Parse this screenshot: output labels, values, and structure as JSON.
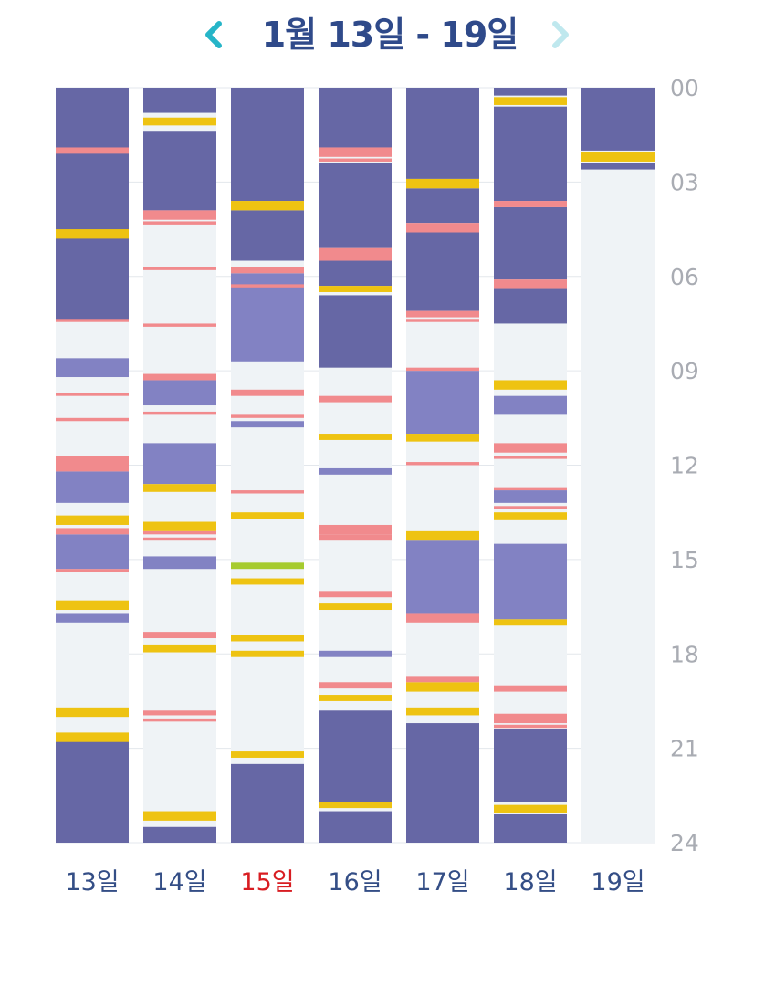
{
  "header": {
    "title": "1월 13일 - 19일",
    "prev_icon": "chevron-left-icon",
    "next_icon": "chevron-right-icon",
    "prev_color": "#26b5c8",
    "next_color": "#bfe8ee"
  },
  "chart_data": {
    "type": "bar",
    "orientation": "stacked-timeline",
    "days": [
      "13일",
      "14일",
      "15일",
      "16일",
      "17일",
      "18일",
      "19일"
    ],
    "highlighted_day": "15일",
    "hour_ticks": [
      "00",
      "03",
      "06",
      "09",
      "12",
      "15",
      "18",
      "21",
      "24"
    ],
    "ylim": [
      0,
      24
    ],
    "colors": {
      "sleep": "#6667a5",
      "nap": "#8282c3",
      "feed": "#eec312",
      "diaper": "#f18a8d",
      "other": "#a6cb2f",
      "background": "#eff3f6",
      "label": "#344e86",
      "highlight_label": "#d81d22",
      "tick": "#a9acb3"
    },
    "series": [
      {
        "day": "13일",
        "sleep": [
          [
            0,
            7.4
          ],
          [
            20.7,
            24
          ]
        ],
        "nap": [
          [
            8.6,
            9.2
          ],
          [
            12.2,
            13.2
          ],
          [
            14.2,
            15.3
          ],
          [
            16.7,
            17.0
          ]
        ],
        "feed": [
          [
            4.5,
            4.8
          ],
          [
            13.6,
            13.9
          ],
          [
            16.3,
            16.6
          ],
          [
            19.7,
            20.0
          ],
          [
            20.5,
            20.8
          ]
        ],
        "diaper": [
          [
            1.9,
            2.1
          ],
          [
            7.35,
            7.45
          ],
          [
            9.7,
            9.8
          ],
          [
            10.5,
            10.6
          ],
          [
            11.7,
            12.2
          ],
          [
            14.0,
            14.2
          ],
          [
            15.3,
            15.4
          ]
        ],
        "other": []
      },
      {
        "day": "14일",
        "sleep": [
          [
            0,
            0.8
          ],
          [
            1.4,
            3.9
          ],
          [
            23.5,
            24
          ]
        ],
        "nap": [
          [
            9.3,
            10.1
          ],
          [
            11.3,
            12.6
          ],
          [
            14.9,
            15.3
          ]
        ],
        "feed": [
          [
            0.95,
            1.2
          ],
          [
            12.6,
            12.85
          ],
          [
            13.8,
            14.1
          ],
          [
            17.7,
            17.95
          ],
          [
            23.0,
            23.3
          ]
        ],
        "diaper": [
          [
            3.9,
            4.2
          ],
          [
            4.25,
            4.35
          ],
          [
            5.7,
            5.8
          ],
          [
            7.5,
            7.6
          ],
          [
            9.1,
            9.3
          ],
          [
            10.3,
            10.4
          ],
          [
            14.1,
            14.2
          ],
          [
            14.3,
            14.4
          ],
          [
            17.3,
            17.5
          ],
          [
            19.8,
            19.95
          ],
          [
            20.05,
            20.15
          ]
        ],
        "other": []
      },
      {
        "day": "15일",
        "sleep": [
          [
            0,
            3.6
          ],
          [
            3.9,
            5.5
          ],
          [
            21.5,
            24
          ]
        ],
        "nap": [
          [
            5.9,
            8.7
          ],
          [
            10.6,
            10.8
          ]
        ],
        "feed": [
          [
            3.6,
            3.9
          ],
          [
            13.5,
            13.7
          ],
          [
            15.6,
            15.8
          ],
          [
            17.4,
            17.6
          ],
          [
            17.9,
            18.1
          ],
          [
            21.1,
            21.3
          ]
        ],
        "diaper": [
          [
            5.7,
            5.9
          ],
          [
            6.25,
            6.35
          ],
          [
            9.6,
            9.8
          ],
          [
            10.4,
            10.5
          ],
          [
            12.8,
            12.9
          ]
        ],
        "other": [
          [
            15.1,
            15.3
          ]
        ]
      },
      {
        "day": "16일",
        "sleep": [
          [
            0,
            1.9
          ],
          [
            2.4,
            5.1
          ],
          [
            5.5,
            6.3
          ],
          [
            6.6,
            8.9
          ],
          [
            19.8,
            22.7
          ],
          [
            23.0,
            24
          ]
        ],
        "nap": [
          [
            12.1,
            12.3
          ],
          [
            17.9,
            18.1
          ]
        ],
        "feed": [
          [
            6.3,
            6.5
          ],
          [
            11.0,
            11.2
          ],
          [
            16.4,
            16.6
          ],
          [
            19.3,
            19.5
          ],
          [
            22.7,
            22.9
          ]
        ],
        "diaper": [
          [
            1.9,
            2.2
          ],
          [
            2.25,
            2.35
          ],
          [
            5.1,
            5.5
          ],
          [
            9.8,
            10.0
          ],
          [
            13.9,
            14.2
          ],
          [
            14.2,
            14.4
          ],
          [
            16.0,
            16.2
          ],
          [
            18.9,
            19.1
          ]
        ],
        "other": []
      },
      {
        "day": "17일",
        "sleep": [
          [
            0,
            2.9
          ],
          [
            3.2,
            4.3
          ],
          [
            4.6,
            7.1
          ],
          [
            20.2,
            24
          ]
        ],
        "nap": [
          [
            9.0,
            11.0
          ],
          [
            14.4,
            16.7
          ]
        ],
        "feed": [
          [
            2.9,
            3.2
          ],
          [
            11.0,
            11.25
          ],
          [
            14.1,
            14.4
          ],
          [
            18.9,
            19.2
          ],
          [
            19.7,
            19.95
          ]
        ],
        "diaper": [
          [
            4.3,
            4.6
          ],
          [
            7.1,
            7.3
          ],
          [
            7.35,
            7.45
          ],
          [
            8.9,
            9.0
          ],
          [
            11.9,
            12.0
          ],
          [
            16.7,
            17.0
          ],
          [
            18.7,
            18.9
          ]
        ],
        "other": []
      },
      {
        "day": "18일",
        "sleep": [
          [
            0,
            0.25
          ],
          [
            0.6,
            3.6
          ],
          [
            3.8,
            6.1
          ],
          [
            6.4,
            7.5
          ],
          [
            20.4,
            22.7
          ],
          [
            23.1,
            24
          ]
        ],
        "nap": [
          [
            9.8,
            10.4
          ],
          [
            12.8,
            13.2
          ],
          [
            14.5,
            16.9
          ]
        ],
        "feed": [
          [
            0.3,
            0.55
          ],
          [
            9.3,
            9.6
          ],
          [
            13.5,
            13.75
          ],
          [
            16.9,
            17.1
          ],
          [
            22.8,
            23.05
          ]
        ],
        "diaper": [
          [
            3.6,
            3.8
          ],
          [
            6.1,
            6.4
          ],
          [
            11.3,
            11.6
          ],
          [
            11.7,
            11.8
          ],
          [
            12.7,
            12.8
          ],
          [
            13.3,
            13.4
          ],
          [
            19.0,
            19.2
          ],
          [
            19.9,
            20.2
          ],
          [
            20.25,
            20.35
          ]
        ],
        "other": []
      },
      {
        "day": "19일",
        "sleep": [
          [
            0,
            2.0
          ],
          [
            2.4,
            2.6
          ]
        ],
        "nap": [],
        "feed": [
          [
            2.05,
            2.35
          ]
        ],
        "diaper": [],
        "other": [],
        "no_data_after": 2.6
      }
    ]
  }
}
